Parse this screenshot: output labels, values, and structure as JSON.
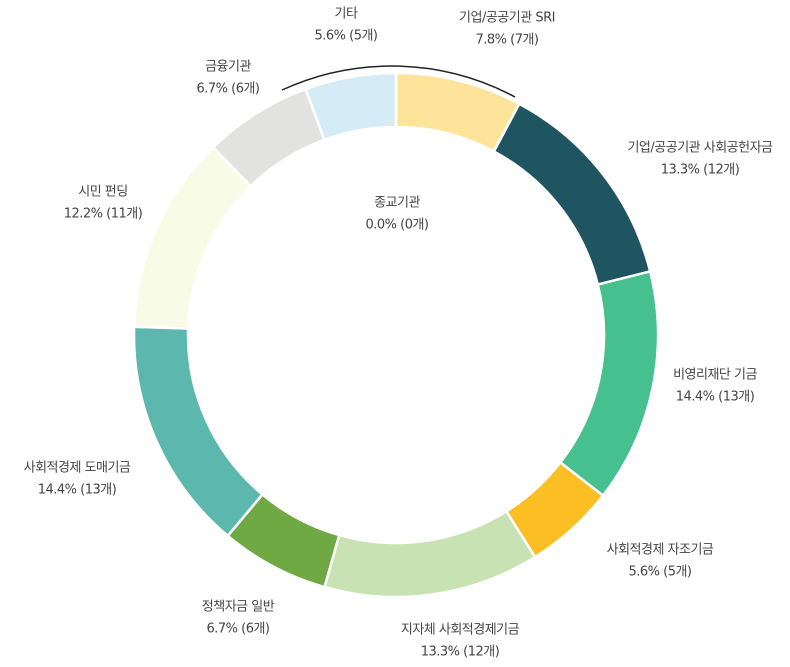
{
  "chart_data": {
    "type": "donut",
    "categories": [
      "기업/공공기관 SRI",
      "기업/공공기관 사회공헌자금",
      "비영리재단 기금",
      "사회적경제 자조기금",
      "지자체 사회적경제기금",
      "정책자금 일반",
      "사회적경제 도매기금",
      "시민 펀딩",
      "금융기관",
      "기타",
      "종교기관"
    ],
    "values": [
      7.8,
      13.3,
      14.4,
      5.6,
      13.3,
      6.7,
      14.4,
      12.2,
      6.7,
      5.6,
      0.0
    ],
    "value_labels": [
      "7.8% (7개)",
      "13.3% (12개)",
      "14.4% (13개)",
      "5.6% (5개)",
      "13.3% (12개)",
      "6.7% (6개)",
      "14.4% (13개)",
      "12.2% (11개)",
      "6.7% (6개)",
      "5.6% (5개)",
      "0.0% (0개)"
    ],
    "colors": [
      "#fde49a",
      "#1f5560",
      "#45c08e",
      "#fbbf24",
      "#c8e2b4",
      "#6ea944",
      "#5cb8ad",
      "#f8fbe6",
      "#e2e3e0",
      "#d5ecf7",
      "#9b8ec4"
    ]
  }
}
